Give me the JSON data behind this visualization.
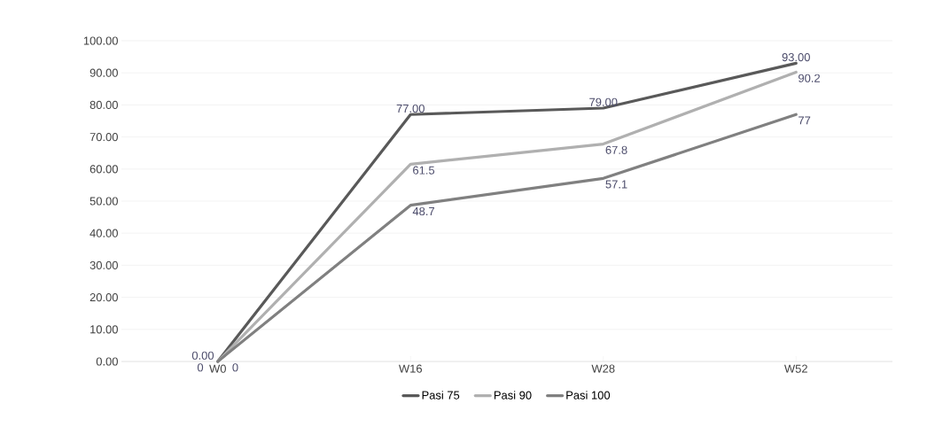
{
  "chart_data": {
    "type": "line",
    "categories": [
      "W0",
      "W16",
      "W28",
      "W52"
    ],
    "series": [
      {
        "name": "Pasi 75",
        "color": "#595959",
        "values": [
          0,
          77,
          79,
          93
        ],
        "value_labels": [
          "0.00",
          "77.00",
          "79.00",
          "93.00"
        ]
      },
      {
        "name": "Pasi 90",
        "color": "#b0b0b0",
        "values": [
          0,
          61.5,
          67.8,
          90.2
        ],
        "value_labels": [
          "0",
          "61.5",
          "67.8",
          "90.2"
        ]
      },
      {
        "name": "Pasi 100",
        "color": "#808080",
        "values": [
          0,
          48.7,
          57.1,
          77
        ],
        "value_labels": [
          "0",
          "48.7",
          "57.1",
          "77"
        ]
      }
    ],
    "ylim": [
      0,
      100
    ],
    "yticks": [
      {
        "value": 0,
        "label": "0.00"
      },
      {
        "value": 10,
        "label": "10.00"
      },
      {
        "value": 20,
        "label": "20.00"
      },
      {
        "value": 30,
        "label": "30.00"
      },
      {
        "value": 40,
        "label": "40.00"
      },
      {
        "value": 50,
        "label": "50.00"
      },
      {
        "value": 60,
        "label": "60.00"
      },
      {
        "value": 70,
        "label": "70.00"
      },
      {
        "value": 80,
        "label": "80.00"
      },
      {
        "value": 90,
        "label": "90.00"
      },
      {
        "value": 100,
        "label": "100.00"
      }
    ],
    "grid": "y",
    "legend": "bottom",
    "marker": "none",
    "line_style": "solid"
  }
}
